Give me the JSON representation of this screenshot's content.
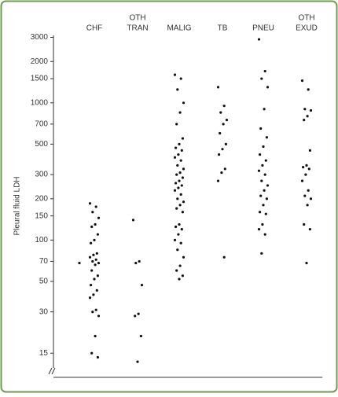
{
  "chart_data": {
    "type": "strip",
    "log_scale": true,
    "ylabel": "Pleural fluid LDH",
    "color": "#111111",
    "ylim": [
      10,
      3100
    ],
    "yticks": [
      15,
      30,
      50,
      70,
      100,
      150,
      200,
      300,
      500,
      700,
      1000,
      1500,
      2000,
      3000
    ],
    "groups": [
      {
        "category": [
          "CHF"
        ],
        "values": [
          185,
          175,
          160,
          145,
          130,
          125,
          110,
          100,
          95,
          80,
          78,
          75,
          72,
          70,
          68,
          66,
          60,
          55,
          52,
          47,
          43,
          40,
          38,
          31,
          30,
          28,
          20,
          15,
          14,
          68
        ]
      },
      {
        "category": [
          "OTH",
          "TRAN"
        ],
        "values": [
          140,
          70,
          68,
          47,
          29,
          28,
          20,
          13
        ]
      },
      {
        "category": [
          "MALIG"
        ],
        "values": [
          1600,
          1500,
          1250,
          1000,
          850,
          700,
          550,
          500,
          470,
          450,
          420,
          400,
          380,
          350,
          330,
          310,
          300,
          285,
          270,
          260,
          250,
          240,
          230,
          215,
          200,
          190,
          180,
          170,
          160,
          130,
          125,
          120,
          110,
          100,
          95,
          85,
          75,
          65,
          60,
          55,
          52
        ]
      },
      {
        "category": [
          "TB"
        ],
        "values": [
          1300,
          950,
          850,
          750,
          700,
          600,
          500,
          460,
          420,
          330,
          310,
          270,
          75
        ]
      },
      {
        "category": [
          "PNEU"
        ],
        "values": [
          2900,
          1700,
          1500,
          1300,
          900,
          650,
          560,
          480,
          420,
          380,
          350,
          320,
          300,
          270,
          250,
          230,
          210,
          200,
          180,
          160,
          155,
          130,
          120,
          110,
          80
        ]
      },
      {
        "category": [
          "OTH",
          "EXUD"
        ],
        "values": [
          1450,
          1250,
          900,
          880,
          800,
          750,
          450,
          350,
          340,
          330,
          300,
          270,
          230,
          210,
          200,
          180,
          130,
          120,
          68
        ]
      }
    ]
  }
}
